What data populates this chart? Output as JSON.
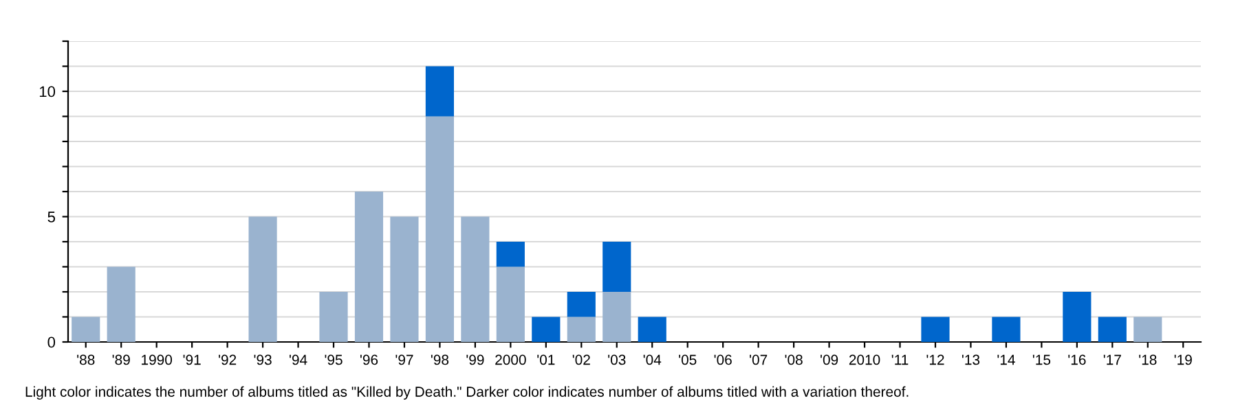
{
  "chart_data": {
    "type": "bar",
    "stacked": true,
    "categories": [
      "'88",
      "'89",
      "1990",
      "'91",
      "'92",
      "'93",
      "'94",
      "'95",
      "'96",
      "'97",
      "'98",
      "'99",
      "2000",
      "'01",
      "'02",
      "'03",
      "'04",
      "'05",
      "'06",
      "'07",
      "'08",
      "'09",
      "2010",
      "'11",
      "'12",
      "'13",
      "'14",
      "'15",
      "'16",
      "'17",
      "'18",
      "'19"
    ],
    "series": [
      {
        "color": "#9ab3cf",
        "values": [
          1,
          3,
          0,
          0,
          0,
          5,
          0,
          2,
          6,
          5,
          9,
          5,
          3,
          0,
          1,
          2,
          0,
          0,
          0,
          0,
          0,
          0,
          0,
          0,
          0,
          0,
          0,
          0,
          0,
          0,
          1,
          0
        ]
      },
      {
        "color": "#0066cc",
        "values": [
          0,
          0,
          0,
          0,
          0,
          0,
          0,
          0,
          0,
          0,
          2,
          0,
          1,
          1,
          1,
          2,
          1,
          0,
          0,
          0,
          0,
          0,
          0,
          0,
          1,
          0,
          1,
          0,
          2,
          1,
          0,
          0
        ]
      }
    ],
    "ylim": [
      0,
      12
    ],
    "yticks": [
      0,
      {
        "value": 1,
        "label": null
      },
      {
        "value": 2,
        "label": null
      },
      {
        "value": 3,
        "label": null
      },
      {
        "value": 4,
        "label": null
      },
      5,
      {
        "value": 6,
        "label": null
      },
      {
        "value": 7,
        "label": null
      },
      {
        "value": 8,
        "label": null
      },
      {
        "value": 9,
        "label": null
      },
      10,
      {
        "value": 11,
        "label": null
      },
      {
        "value": 12,
        "label": null
      }
    ],
    "grid": "y",
    "annotations": [
      "Light color indicates the number of albums titled as \"Killed by Death.\" Darker color indicates number of albums titled with a variation thereof."
    ]
  }
}
